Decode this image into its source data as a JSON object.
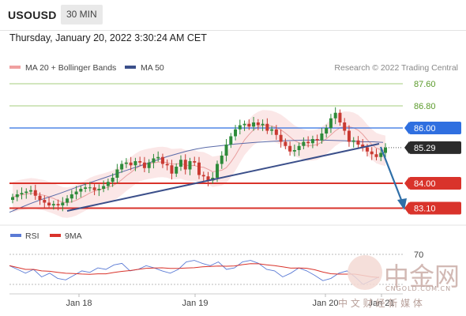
{
  "header": {
    "symbol": "USOUSD",
    "timeframe": "30 MIN",
    "timestamp": "Thursday, January 20, 2022 3:30:24 AM CET"
  },
  "legend": {
    "items": [
      {
        "label": "MA 20 + Bollinger Bands",
        "color": "#f0a0a0"
      },
      {
        "label": "MA 50",
        "color": "#3b4f8a"
      }
    ],
    "credit": "Research © 2022 Trading Central"
  },
  "price_levels": [
    {
      "label": "87.60",
      "kind": "target",
      "color": "#7ab648"
    },
    {
      "label": "86.80",
      "kind": "target",
      "color": "#7ab648"
    },
    {
      "label": "86.00",
      "kind": "pivot",
      "color": "#2f6fe0"
    },
    {
      "label": "85.29",
      "kind": "last",
      "color": "#222222"
    },
    {
      "label": "84.00",
      "kind": "support",
      "color": "#e0282a"
    },
    {
      "label": "83.10",
      "kind": "support",
      "color": "#e0282a"
    }
  ],
  "indicator": {
    "legend": [
      {
        "label": "RSI",
        "color": "#5b7bd5"
      },
      {
        "label": "9MA",
        "color": "#d9332b"
      }
    ],
    "levels": [
      "70",
      "30"
    ]
  },
  "x_axis": {
    "labels": [
      "Jan 18",
      "Jan 19",
      "Jan 20",
      "Jan 21"
    ]
  },
  "watermark": {
    "brand": "中金网",
    "domain": "CNGOLD.COM.CN",
    "slogan": "中 文 财 经 新 媒 体"
  },
  "chart_data": {
    "type": "candlestick",
    "timeframe": "30 MIN",
    "y_levels": [
      87.6,
      86.8,
      86.0,
      85.29,
      84.0,
      83.1
    ],
    "close_series": [
      83.5,
      83.6,
      83.65,
      83.7,
      83.75,
      83.55,
      83.4,
      83.3,
      83.2,
      83.25,
      83.2,
      83.3,
      83.45,
      83.6,
      83.7,
      83.8,
      83.85,
      83.85,
      83.75,
      83.8,
      83.9,
      84.05,
      84.2,
      84.5,
      84.7,
      84.75,
      84.65,
      84.8,
      84.75,
      84.55,
      84.75,
      84.9,
      84.95,
      84.7,
      84.65,
      84.35,
      84.6,
      84.85,
      84.5,
      84.8,
      84.75,
      84.3,
      84.25,
      84.1,
      84.2,
      84.7,
      85.0,
      85.4,
      85.7,
      85.95,
      86.1,
      86.15,
      86.05,
      86.2,
      86.1,
      86.15,
      85.9,
      85.95,
      85.75,
      85.5,
      85.35,
      85.15,
      85.2,
      85.35,
      85.5,
      85.45,
      85.6,
      85.55,
      85.8,
      86.0,
      86.35,
      86.55,
      86.2,
      85.9,
      85.5,
      85.55,
      85.4,
      85.3,
      85.15,
      85.05,
      84.95,
      85.1,
      85.29
    ],
    "ma50": [
      82.95,
      83.1,
      83.25,
      83.38,
      83.5,
      83.62,
      83.75,
      83.88,
      84.0,
      84.12,
      84.24,
      84.36,
      84.48,
      84.6,
      84.72,
      84.84,
      84.96,
      85.06,
      85.16,
      85.24,
      85.3,
      85.34,
      85.38,
      85.42,
      85.45,
      85.48,
      85.5,
      85.52,
      85.54,
      85.55,
      85.56,
      85.56,
      85.56,
      85.55,
      85.54,
      85.52,
      85.5,
      85.5,
      85.48
    ],
    "rsi": [
      55,
      50,
      45,
      50,
      40,
      45,
      38,
      36,
      42,
      48,
      46,
      52,
      50,
      56,
      58,
      48,
      50,
      55,
      52,
      48,
      45,
      50,
      60,
      62,
      58,
      55,
      60,
      50,
      52,
      60,
      62,
      58,
      50,
      48,
      40,
      45,
      52,
      48,
      42,
      35,
      38,
      45,
      48,
      40,
      30,
      35,
      40
    ]
  }
}
